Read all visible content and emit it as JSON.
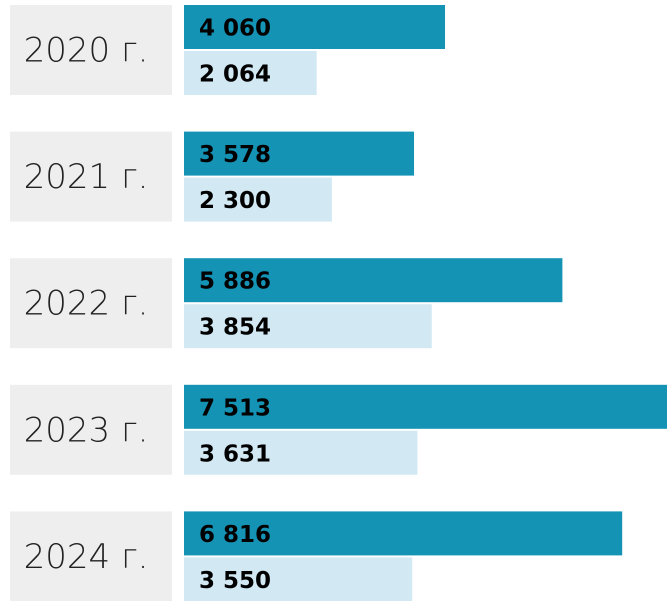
{
  "chart_data": {
    "type": "bar",
    "orientation": "horizontal",
    "categories": [
      "2020 г.",
      "2021 г.",
      "2022 г.",
      "2023 г.",
      "2024 г."
    ],
    "series": [
      {
        "color": "#1593b5",
        "values": [
          4060,
          3578,
          5886,
          7513,
          6816
        ],
        "value_labels": [
          "4 060",
          "3 578",
          "5 886",
          "7 513",
          "6 816"
        ]
      },
      {
        "color": "#d2e9f4",
        "values": [
          2064,
          2300,
          3854,
          3631,
          3550
        ],
        "value_labels": [
          "2 064",
          "2 300",
          "3 854",
          "3 631",
          "3 550"
        ]
      }
    ],
    "xlim": [
      0,
      7513
    ]
  }
}
